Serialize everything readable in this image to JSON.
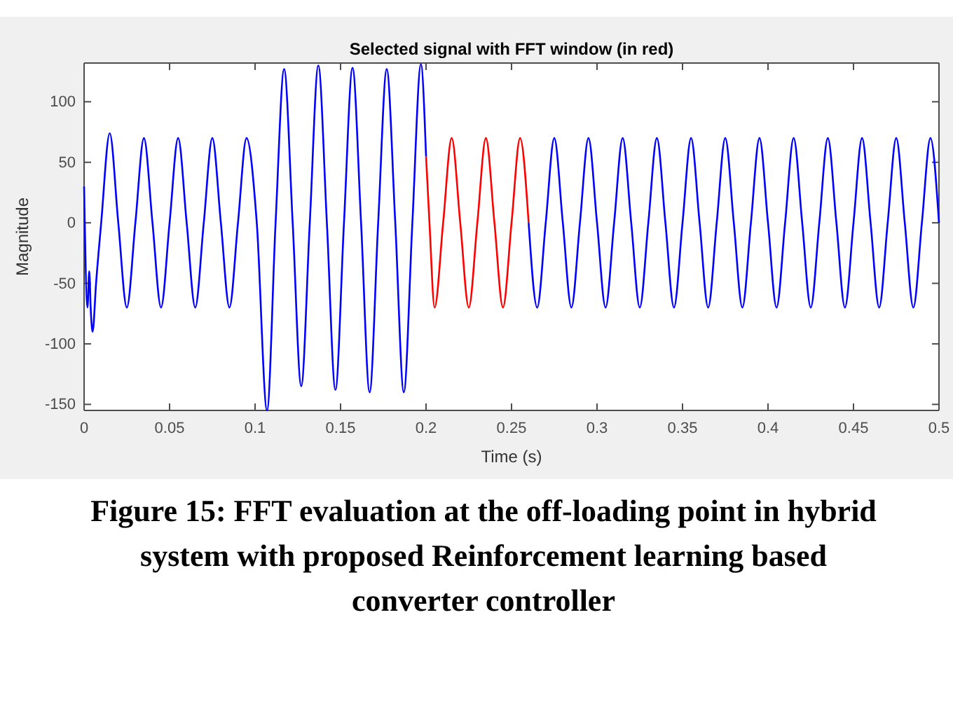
{
  "chart_data": {
    "type": "line",
    "title": "Selected signal with FFT window (in red)",
    "xlabel": "Time (s)",
    "ylabel": "Magnitude",
    "xlim": [
      0,
      0.5
    ],
    "ylim": [
      -155,
      132
    ],
    "xticks": [
      0,
      0.05,
      0.1,
      0.15,
      0.2,
      0.25,
      0.3,
      0.35,
      0.4,
      0.45,
      0.5
    ],
    "yticks": [
      -150,
      -100,
      -50,
      0,
      50,
      100
    ],
    "grid": false,
    "marker": "none",
    "line_style": "solid",
    "series": [
      {
        "color": "#0000ff",
        "x": [
          0,
          0.002,
          0.003,
          0.004,
          0.005,
          0.007,
          0.01,
          0.015,
          0.02,
          0.025,
          0.03,
          0.035,
          0.04,
          0.045,
          0.05,
          0.055,
          0.06,
          0.065,
          0.07,
          0.075,
          0.08,
          0.085,
          0.09,
          0.095,
          0.101,
          0.107,
          0.112,
          0.117,
          0.122,
          0.127,
          0.132,
          0.137,
          0.142,
          0.147,
          0.152,
          0.157,
          0.162,
          0.167,
          0.172,
          0.177,
          0.182,
          0.187,
          0.192,
          0.197,
          0.2
        ],
        "values": [
          30,
          -70,
          -40,
          -75,
          -90,
          -50,
          0,
          74,
          0,
          -70,
          0,
          70,
          0,
          -70,
          0,
          70,
          0,
          -70,
          0,
          70,
          0,
          -70,
          0,
          70,
          0,
          -155,
          0,
          127,
          0,
          -135,
          0,
          130,
          0,
          -138,
          0,
          128,
          0,
          -140,
          0,
          127,
          0,
          -140,
          0,
          131,
          55
        ]
      },
      {
        "color": "#ff0000",
        "x": [
          0.2,
          0.202,
          0.205,
          0.21,
          0.215,
          0.22,
          0.225,
          0.23,
          0.235,
          0.24,
          0.245,
          0.25,
          0.255,
          0.26
        ],
        "values": [
          55,
          0,
          -70,
          0,
          70,
          0,
          -70,
          0,
          70,
          0,
          -70,
          0,
          70,
          0
        ]
      },
      {
        "color": "#0000ff",
        "x": [
          0.26,
          0.265,
          0.27,
          0.275,
          0.28,
          0.285,
          0.29,
          0.295,
          0.3,
          0.305,
          0.31,
          0.315,
          0.32,
          0.325,
          0.33,
          0.335,
          0.34,
          0.345,
          0.35,
          0.355,
          0.36,
          0.365,
          0.37,
          0.375,
          0.38,
          0.385,
          0.39,
          0.395,
          0.4,
          0.405,
          0.41,
          0.415,
          0.42,
          0.425,
          0.43,
          0.435,
          0.44,
          0.445,
          0.45,
          0.455,
          0.46,
          0.465,
          0.47,
          0.475,
          0.48,
          0.485,
          0.49,
          0.495,
          0.5
        ],
        "values": [
          0,
          -70,
          0,
          70,
          0,
          -70,
          0,
          70,
          0,
          -70,
          0,
          70,
          0,
          -70,
          0,
          70,
          0,
          -70,
          0,
          70,
          0,
          -70,
          0,
          70,
          0,
          -70,
          0,
          70,
          0,
          -70,
          0,
          70,
          0,
          -70,
          0,
          70,
          0,
          -70,
          0,
          70,
          0,
          -70,
          0,
          70,
          0,
          -70,
          0,
          70,
          0
        ]
      }
    ],
    "annotations": [
      "Figure 15: FFT evaluation at the off-loading point in hybrid system with proposed Reinforcement learning based converter controller"
    ]
  }
}
